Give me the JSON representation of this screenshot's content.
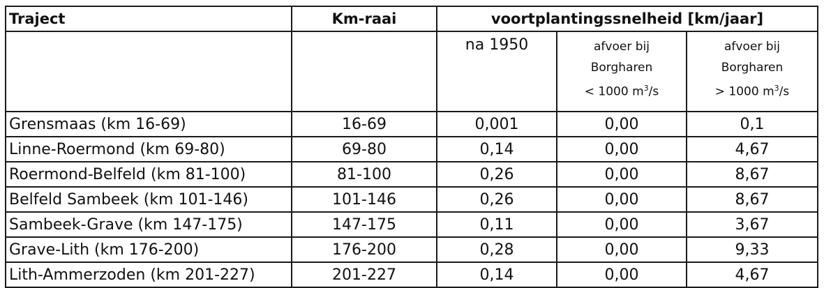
{
  "header": {
    "traject": "Traject",
    "km_raai": "Km-raai",
    "group": "voortplantingssnelheid [km/jaar]",
    "sub": {
      "na1950": "na 1950",
      "low": {
        "line1": "afvoer bij",
        "line2": "Borgharen",
        "line3_pre": "< 1000 m",
        "sup": "3",
        "line3_post": "/s"
      },
      "high": {
        "line1": "afvoer bij",
        "line2": "Borgharen",
        "line3_pre": "> 1000 m",
        "sup": "3",
        "line3_post": "/s"
      }
    }
  },
  "rows": [
    {
      "traject": "Grensmaas (km 16-69)",
      "km": "16-69",
      "na1950": "0,001",
      "low": "0,00",
      "high": "0,1"
    },
    {
      "traject": "Linne-Roermond (km 69-80)",
      "km": "69-80",
      "na1950": "0,14",
      "low": "0,00",
      "high": "4,67"
    },
    {
      "traject": "Roermond-Belfeld (km 81-100)",
      "km": "81-100",
      "na1950": "0,26",
      "low": "0,00",
      "high": "8,67"
    },
    {
      "traject": "Belfeld Sambeek (km 101-146)",
      "km": "101-146",
      "na1950": "0,26",
      "low": "0,00",
      "high": "8,67"
    },
    {
      "traject": "Sambeek-Grave (km 147-175)",
      "km": "147-175",
      "na1950": "0,11",
      "low": "0,00",
      "high": "3,67"
    },
    {
      "traject": "Grave-Lith (km 176-200)",
      "km": "176-200",
      "na1950": "0,28",
      "low": "0,00",
      "high": "9,33"
    },
    {
      "traject": "Lith-Ammerzoden (km 201-227)",
      "km": "201-227",
      "na1950": "0,14",
      "low": "0,00",
      "high": "4,67"
    }
  ]
}
